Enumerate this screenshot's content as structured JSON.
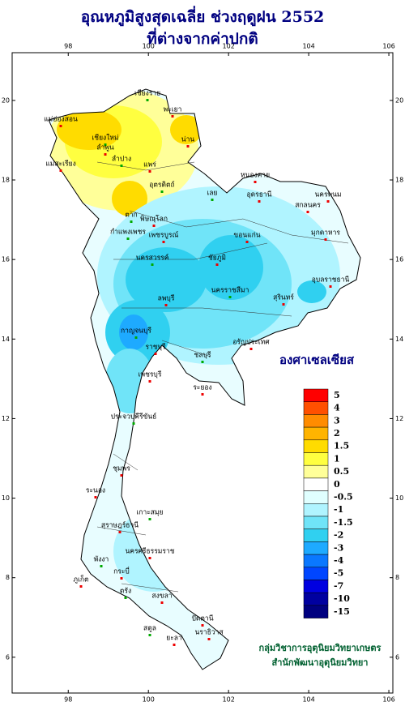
{
  "map": {
    "title": [
      "อุณหภูมิสูงสุดเฉลี่ย ช่วงฤดูฝน 2552",
      "ที่ต่างจากค่าปกติ"
    ],
    "xlim": [
      96.6,
      106.1
    ],
    "ylim": [
      5.1,
      21.2
    ],
    "xticks": [
      98,
      100,
      102,
      104,
      106
    ],
    "yticks": [
      6,
      8,
      10,
      12,
      14,
      16,
      18,
      20
    ],
    "unit": "องศาเซลเซียส",
    "legend": {
      "colors": [
        "#ff0000",
        "#ff5000",
        "#ff8c00",
        "#ffb400",
        "#ffdc00",
        "#ffff40",
        "#ffff99",
        "#ffffff",
        "#e0ffff",
        "#b0f4ff",
        "#70e4f8",
        "#30d0f0",
        "#1eaaff",
        "#0a78ff",
        "#0046ff",
        "#0000e0",
        "#0000a0",
        "#000080"
      ],
      "labels": [
        5,
        4,
        3,
        2,
        1.5,
        1,
        0.5,
        0,
        -0.5,
        -1,
        -1.5,
        -2,
        -3,
        -4,
        -5,
        -7,
        -10,
        -15
      ]
    },
    "places": [
      "เชียงราย",
      "แม่ฮ่องสอน",
      "พะเยา",
      "เชียงใหม่",
      "น่าน",
      "ลำพูน",
      "ลำปาง",
      "แพร่",
      "แม่สะเรียง",
      "อุตรดิตถ์",
      "หนองคาย",
      "นครพนม",
      "เลย",
      "อุดรธานี",
      "สกลนคร",
      "ตาก",
      "พิษณุโลก",
      "มุกดาหาร",
      "กำแพงเพชร",
      "เพชรบูรณ์",
      "ขอนแก่น",
      "นครสวรรค์",
      "ชัยภูมิ",
      "อุบลราชธานี",
      "นครราชสีมา",
      "สุรินทร์",
      "ลพบุรี",
      "กาญจนบุรี",
      "อรัญประเทศ",
      "ราชบุรี",
      "ชลบุรี",
      "เพชรบุรี",
      "ระยอง",
      "ประจวบคีรีขันธ์",
      "ชุมพร",
      "ระนอง",
      "เกาะสมุย",
      "สุราษฎร์ธานี",
      "นครศรีธรรมราช",
      "พังงา",
      "ภูเก็ต",
      "กระบี่",
      "ตรัง",
      "สงขลา",
      "ปัตตานี",
      "สตูล",
      "ยะลา",
      "นราธิวาส"
    ],
    "credits": [
      "กลุ่มวิชาการอุตุนิยมวิทยาเกษตร",
      "สำนักพัฒนาอุตุนิยมวิทยา"
    ]
  }
}
